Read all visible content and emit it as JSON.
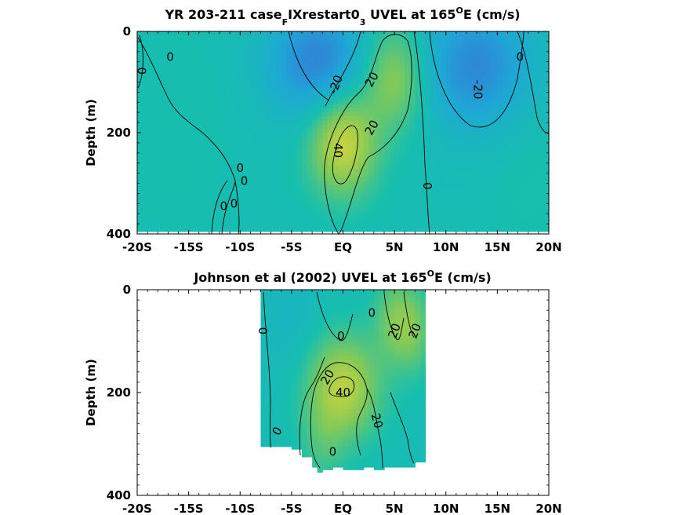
{
  "chart_data": [
    {
      "type": "heatmap",
      "title": {
        "prefix": "YR 203-211 case",
        "sub1": "F",
        "mid": "IXrestart0",
        "sub2": "3",
        "pre_deg": " UVEL at 165",
        "deg": "O",
        "post": "E (cm/s)"
      },
      "ylabel": "Depth (m)",
      "xlim": [
        -20,
        20
      ],
      "ylim": [
        400,
        0
      ],
      "x_ticks": [
        -20,
        -15,
        -10,
        -5,
        0,
        5,
        10,
        15,
        20
      ],
      "x_tick_labels": [
        "-20S",
        "-15S",
        "-10S",
        "-5S",
        "EQ",
        "5N",
        "10N",
        "15N",
        "20N"
      ],
      "y_ticks": [
        0,
        200,
        400
      ],
      "y_tick_labels": [
        "0",
        "200",
        "400"
      ],
      "contour_levels": [
        -20,
        0,
        20,
        40
      ],
      "colormap": [
        "#3b6fd6",
        "#1ea7d6",
        "#17bfae",
        "#7fc95a",
        "#d9d636"
      ],
      "data_mask_bottom_depth": 395,
      "features": [
        {
          "kind": "core",
          "lat": 0,
          "depth": 220,
          "max": 46
        },
        {
          "kind": "core",
          "lat": 5,
          "depth": 90,
          "max": 34
        },
        {
          "kind": "core",
          "lat": -2.5,
          "depth": 60,
          "min": -28
        },
        {
          "kind": "core",
          "lat": 13,
          "depth": 60,
          "min": -26
        }
      ],
      "contour_labels": [
        {
          "text": "0",
          "lat": -16.8,
          "depth": 50,
          "angle": 0
        },
        {
          "text": "0",
          "lat": -19.6,
          "depth": 78,
          "angle": 90
        },
        {
          "text": "-20",
          "lat": -0.7,
          "depth": 105,
          "angle": -70
        },
        {
          "text": "20",
          "lat": 2.8,
          "depth": 95,
          "angle": -60
        },
        {
          "text": "20",
          "lat": 2.8,
          "depth": 190,
          "angle": -60
        },
        {
          "text": "40",
          "lat": -0.5,
          "depth": 235,
          "angle": 90
        },
        {
          "text": "-20",
          "lat": 13.1,
          "depth": 115,
          "angle": 90
        },
        {
          "text": "0",
          "lat": 17.2,
          "depth": 50,
          "angle": 0
        },
        {
          "text": "0",
          "lat": -10,
          "depth": 270,
          "angle": 0
        },
        {
          "text": "0",
          "lat": -9.6,
          "depth": 295,
          "angle": 0
        },
        {
          "text": "0",
          "lat": -11.6,
          "depth": 345,
          "angle": 0
        },
        {
          "text": "0",
          "lat": -10.6,
          "depth": 340,
          "angle": 0
        },
        {
          "text": "0",
          "lat": 8.2,
          "depth": 305,
          "angle": 90
        }
      ]
    },
    {
      "type": "heatmap",
      "title": {
        "prefix": "Johnson et al (2002) UVEL at 165",
        "deg": "O",
        "post": "E (cm/s)"
      },
      "ylabel": "Depth (m)",
      "xlim": [
        -20,
        20
      ],
      "ylim": [
        400,
        0
      ],
      "x_ticks": [
        -20,
        -15,
        -10,
        -5,
        0,
        5,
        10,
        15,
        20
      ],
      "x_tick_labels": [
        "-20S",
        "-15S",
        "-10S",
        "-5S",
        "EQ",
        "5N",
        "10N",
        "15N",
        "20N"
      ],
      "y_ticks": [
        0,
        200,
        400
      ],
      "y_tick_labels": [
        "0",
        "200",
        "400"
      ],
      "contour_levels": [
        0,
        20,
        40
      ],
      "data_extent_lat": [
        -8,
        8
      ],
      "data_mask_bottom_depth": [
        [
          -8,
          305
        ],
        [
          -6,
          305
        ],
        [
          -5,
          310
        ],
        [
          -4,
          325
        ],
        [
          -3,
          345
        ],
        [
          -2.5,
          355
        ],
        [
          -2,
          350
        ],
        [
          -1,
          345
        ],
        [
          0,
          350
        ],
        [
          1,
          350
        ],
        [
          2,
          345
        ],
        [
          3,
          350
        ],
        [
          4,
          345
        ],
        [
          5,
          345
        ],
        [
          6,
          345
        ],
        [
          7,
          335
        ],
        [
          8,
          335
        ]
      ],
      "features": [
        {
          "kind": "core",
          "lat": 0,
          "depth": 190,
          "max": 44
        },
        {
          "kind": "core",
          "lat": 5,
          "depth": 60,
          "max": 26
        },
        {
          "kind": "core",
          "lat": 7,
          "depth": 80,
          "max": 24
        }
      ],
      "contour_labels": [
        {
          "text": "0",
          "lat": -7.8,
          "depth": 80,
          "angle": 90
        },
        {
          "text": "0",
          "lat": -0.2,
          "depth": 90,
          "angle": 0
        },
        {
          "text": "0",
          "lat": 2.8,
          "depth": 45,
          "angle": 0
        },
        {
          "text": "20",
          "lat": 5,
          "depth": 80,
          "angle": -70
        },
        {
          "text": "20",
          "lat": 7,
          "depth": 80,
          "angle": -70
        },
        {
          "text": "20",
          "lat": -1.5,
          "depth": 170,
          "angle": -60
        },
        {
          "text": "40",
          "lat": 0,
          "depth": 200,
          "angle": 0
        },
        {
          "text": "20",
          "lat": 3.3,
          "depth": 255,
          "angle": 75
        },
        {
          "text": "0",
          "lat": -6.4,
          "depth": 275,
          "angle": -60
        },
        {
          "text": "0",
          "lat": -1,
          "depth": 315,
          "angle": 0
        }
      ]
    }
  ]
}
